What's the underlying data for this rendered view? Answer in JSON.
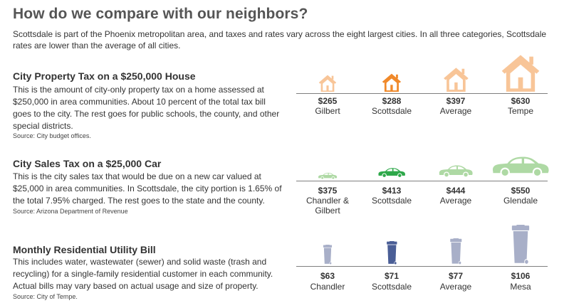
{
  "title": "How do we compare with our neighbors?",
  "intro": "Scottsdale is part of the Phoenix metropolitan area, and taxes and rates vary across the eight largest cities. In all three categories, Scottsdale rates are lower than the average of all cities.",
  "colors": {
    "highlight": "#F0892A",
    "house_light": "#F8C598",
    "car_highlight": "#2EA84A",
    "car_light": "#AED9A4",
    "bin_highlight": "#4A5E96",
    "bin_light": "#A8AFC8",
    "divider": "#7F7F7F"
  },
  "sections": [
    {
      "title": "City Property Tax on a $250,000 House",
      "description": "This is the amount of city-only property tax on a home assessed at $250,000 in area communities. About 10 percent of the total tax bill goes to the city. The rest goes for public schools, the county, and other special districts.",
      "source": "Source: City budget offices.",
      "icon": "house-icon"
    },
    {
      "title": "City Sales Tax on a $25,000 Car",
      "description": "This is the city sales tax that would be due on a new car valued at $25,000 in area communities. In Scottsdale, the city portion is 1.65% of the total 7.95% charged. The rest goes to the state and the county.",
      "source": "Source: Arizona Department of Revenue",
      "icon": "car-icon"
    },
    {
      "title": "Monthly Residential Utility Bill",
      "description": "This includes water, wastewater (sewer) and solid waste (trash and recycling) for a single-family residential customer in each community. Actual bills may vary based on actual usage and size of property.",
      "source": "Source: City of Tempe.",
      "icon": "trash-bin-icon"
    }
  ],
  "chart_data": [
    {
      "type": "bar",
      "title": "City Property Tax on a $250,000 House",
      "categories": [
        "Gilbert",
        "Scottsdale",
        "Average",
        "Tempe"
      ],
      "values": [
        265,
        288,
        397,
        630
      ],
      "value_labels": [
        "$265",
        "$288",
        "$397",
        "$630"
      ],
      "highlight": "Scottsdale"
    },
    {
      "type": "bar",
      "title": "City Sales Tax on a $25,000 Car",
      "categories": [
        "Chandler & Gilbert",
        "Scottsdale",
        "Average",
        "Glendale"
      ],
      "values": [
        375,
        413,
        444,
        550
      ],
      "value_labels": [
        "$375",
        "$413",
        "$444",
        "$550"
      ],
      "highlight": "Scottsdale"
    },
    {
      "type": "bar",
      "title": "Monthly Residential Utility Bill",
      "categories": [
        "Chandler",
        "Scottsdale",
        "Average",
        "Mesa"
      ],
      "values": [
        63,
        71,
        77,
        106
      ],
      "value_labels": [
        "$63",
        "$71",
        "$77",
        "$106"
      ],
      "highlight": "Scottsdale"
    }
  ]
}
